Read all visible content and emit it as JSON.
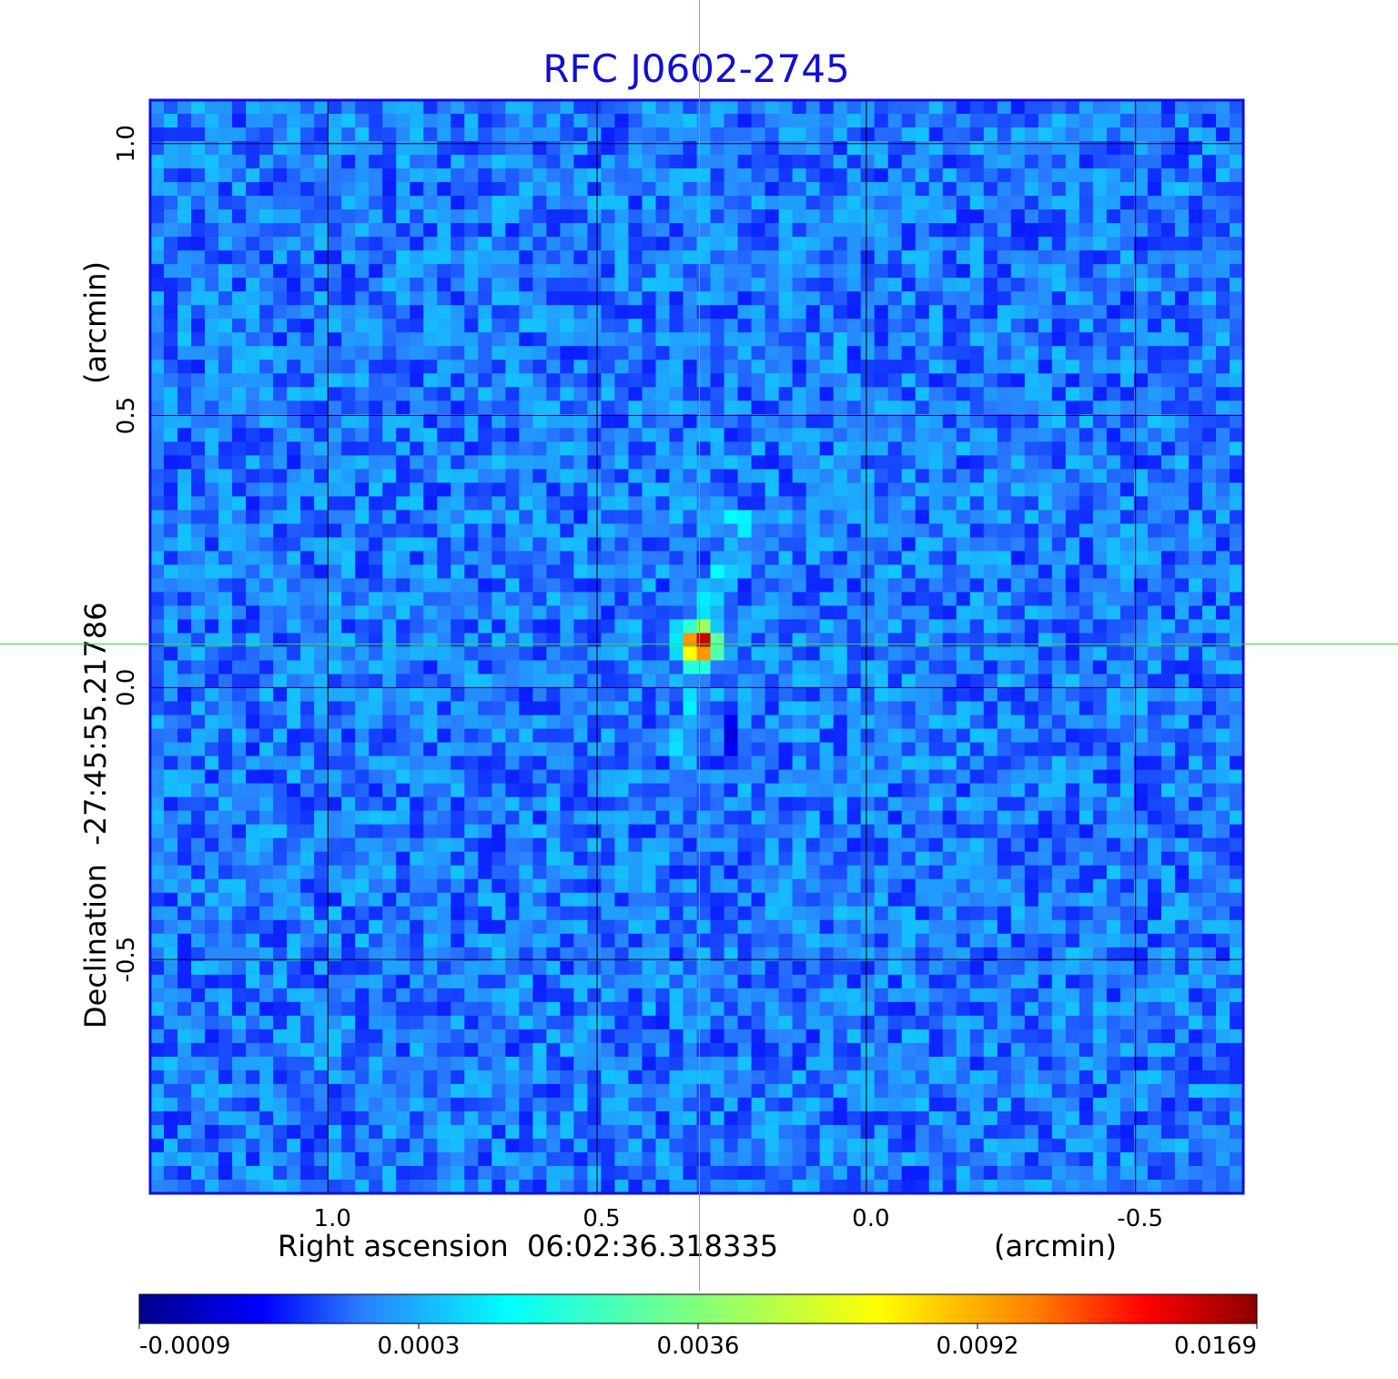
{
  "chart_data": {
    "type": "heatmap",
    "title": "RFC J0602-2745",
    "xlabel": "Right ascension  06:02:36.318335",
    "xunit": "(arcmin)",
    "ylabel": "Declination  -27:45:55.21786",
    "yunit": "(arcmin)",
    "xlim": [
      1.33,
      -0.7
    ],
    "ylim": [
      -0.93,
      1.08
    ],
    "x_ticks": [
      {
        "value": 1.0,
        "label": "1.0"
      },
      {
        "value": 0.5,
        "label": "0.5"
      },
      {
        "value": 0.0,
        "label": "0.0"
      },
      {
        "value": -0.5,
        "label": "-0.5"
      }
    ],
    "y_ticks": [
      {
        "value": 1.0,
        "label": "1.0"
      },
      {
        "value": 0.5,
        "label": "0.5"
      },
      {
        "value": 0.0,
        "label": "0.0"
      },
      {
        "value": -0.5,
        "label": "-0.5"
      }
    ],
    "grid": true,
    "crosshair": {
      "x": 0.31,
      "y": 0.08
    },
    "peak": {
      "x": 0.31,
      "y": 0.08,
      "value": 0.0169
    },
    "colorbar": {
      "ticks": [
        "-0.0009",
        "0.0003",
        "0.0036",
        "0.0092",
        "0.0169"
      ],
      "colormap": [
        "#00008b",
        "#0000ff",
        "#2a7fff",
        "#00ffff",
        "#ffff00",
        "#ff8000",
        "#ff0000",
        "#8b0000"
      ]
    }
  }
}
